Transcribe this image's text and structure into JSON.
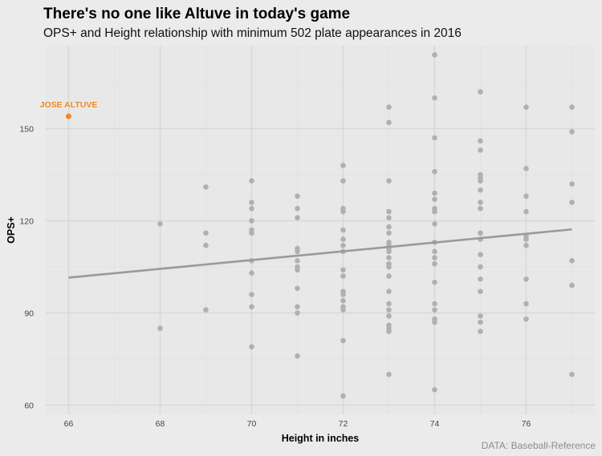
{
  "chart_data": {
    "type": "scatter",
    "title": "There's no one like Altuve in today's game",
    "subtitle": "OPS+ and Height relationship with minimum 502 plate appearances in 2016",
    "caption": "DATA: Baseball-Reference",
    "xlabel": "Height in inches",
    "ylabel": "OPS+",
    "xlim": [
      65.5,
      77.5
    ],
    "ylim": [
      57,
      177
    ],
    "x_ticks": [
      66,
      68,
      70,
      72,
      74,
      76
    ],
    "y_ticks": [
      60,
      90,
      120,
      150
    ],
    "grid": true,
    "colors": {
      "points": "#b0b0b0",
      "highlight": "#f28a22",
      "trend": "#9a9a9a",
      "panel": "#e8e8e8",
      "grid": "#d8d8d8"
    },
    "highlight": {
      "label": "JOSE ALTUVE",
      "x": 66,
      "y": 154
    },
    "trend_line": {
      "x": [
        66,
        77
      ],
      "y": [
        101.5,
        117.2
      ]
    },
    "series": [
      {
        "points": [
          [
            68,
            119
          ],
          [
            68,
            85
          ],
          [
            69,
            131
          ],
          [
            69,
            116
          ],
          [
            69,
            112
          ],
          [
            69,
            91
          ],
          [
            70,
            133
          ],
          [
            70,
            126
          ],
          [
            70,
            124
          ],
          [
            70,
            120
          ],
          [
            70,
            117
          ],
          [
            70,
            116
          ],
          [
            70,
            107
          ],
          [
            70,
            103
          ],
          [
            70,
            96
          ],
          [
            70,
            92
          ],
          [
            70,
            79
          ],
          [
            71,
            128
          ],
          [
            71,
            124
          ],
          [
            71,
            121
          ],
          [
            71,
            111
          ],
          [
            71,
            110
          ],
          [
            71,
            107
          ],
          [
            71,
            105
          ],
          [
            71,
            104
          ],
          [
            71,
            98
          ],
          [
            71,
            92
          ],
          [
            71,
            90
          ],
          [
            71,
            76
          ],
          [
            72,
            138
          ],
          [
            72,
            133
          ],
          [
            72,
            124
          ],
          [
            72,
            123
          ],
          [
            72,
            117
          ],
          [
            72,
            114
          ],
          [
            72,
            112
          ],
          [
            72,
            110
          ],
          [
            72,
            104
          ],
          [
            72,
            102
          ],
          [
            72,
            97
          ],
          [
            72,
            96
          ],
          [
            72,
            94
          ],
          [
            72,
            92
          ],
          [
            72,
            91
          ],
          [
            72,
            81
          ],
          [
            72,
            63
          ],
          [
            73,
            157
          ],
          [
            73,
            152
          ],
          [
            73,
            133
          ],
          [
            73,
            123
          ],
          [
            73,
            121
          ],
          [
            73,
            118
          ],
          [
            73,
            116
          ],
          [
            73,
            113
          ],
          [
            73,
            112
          ],
          [
            73,
            111
          ],
          [
            73,
            110
          ],
          [
            73,
            108
          ],
          [
            73,
            106
          ],
          [
            73,
            105
          ],
          [
            73,
            102
          ],
          [
            73,
            97
          ],
          [
            73,
            93
          ],
          [
            73,
            91
          ],
          [
            73,
            89
          ],
          [
            73,
            86
          ],
          [
            73,
            85
          ],
          [
            73,
            84
          ],
          [
            73,
            70
          ],
          [
            74,
            174
          ],
          [
            74,
            160
          ],
          [
            74,
            147
          ],
          [
            74,
            136
          ],
          [
            74,
            129
          ],
          [
            74,
            127
          ],
          [
            74,
            124
          ],
          [
            74,
            123
          ],
          [
            74,
            119
          ],
          [
            74,
            113
          ],
          [
            74,
            110
          ],
          [
            74,
            108
          ],
          [
            74,
            106
          ],
          [
            74,
            100
          ],
          [
            74,
            93
          ],
          [
            74,
            91
          ],
          [
            74,
            88
          ],
          [
            74,
            87
          ],
          [
            74,
            65
          ],
          [
            75,
            162
          ],
          [
            75,
            146
          ],
          [
            75,
            143
          ],
          [
            75,
            135
          ],
          [
            75,
            134
          ],
          [
            75,
            133
          ],
          [
            75,
            130
          ],
          [
            75,
            126
          ],
          [
            75,
            124
          ],
          [
            75,
            116
          ],
          [
            75,
            114
          ],
          [
            75,
            109
          ],
          [
            75,
            105
          ],
          [
            75,
            101
          ],
          [
            75,
            97
          ],
          [
            75,
            89
          ],
          [
            75,
            87
          ],
          [
            75,
            84
          ],
          [
            76,
            157
          ],
          [
            76,
            137
          ],
          [
            76,
            128
          ],
          [
            76,
            123
          ],
          [
            76,
            115
          ],
          [
            76,
            114
          ],
          [
            76,
            112
          ],
          [
            76,
            101
          ],
          [
            76,
            93
          ],
          [
            76,
            88
          ],
          [
            77,
            157
          ],
          [
            77,
            149
          ],
          [
            77,
            132
          ],
          [
            77,
            126
          ],
          [
            77,
            107
          ],
          [
            77,
            99
          ],
          [
            77,
            70
          ]
        ]
      }
    ]
  }
}
